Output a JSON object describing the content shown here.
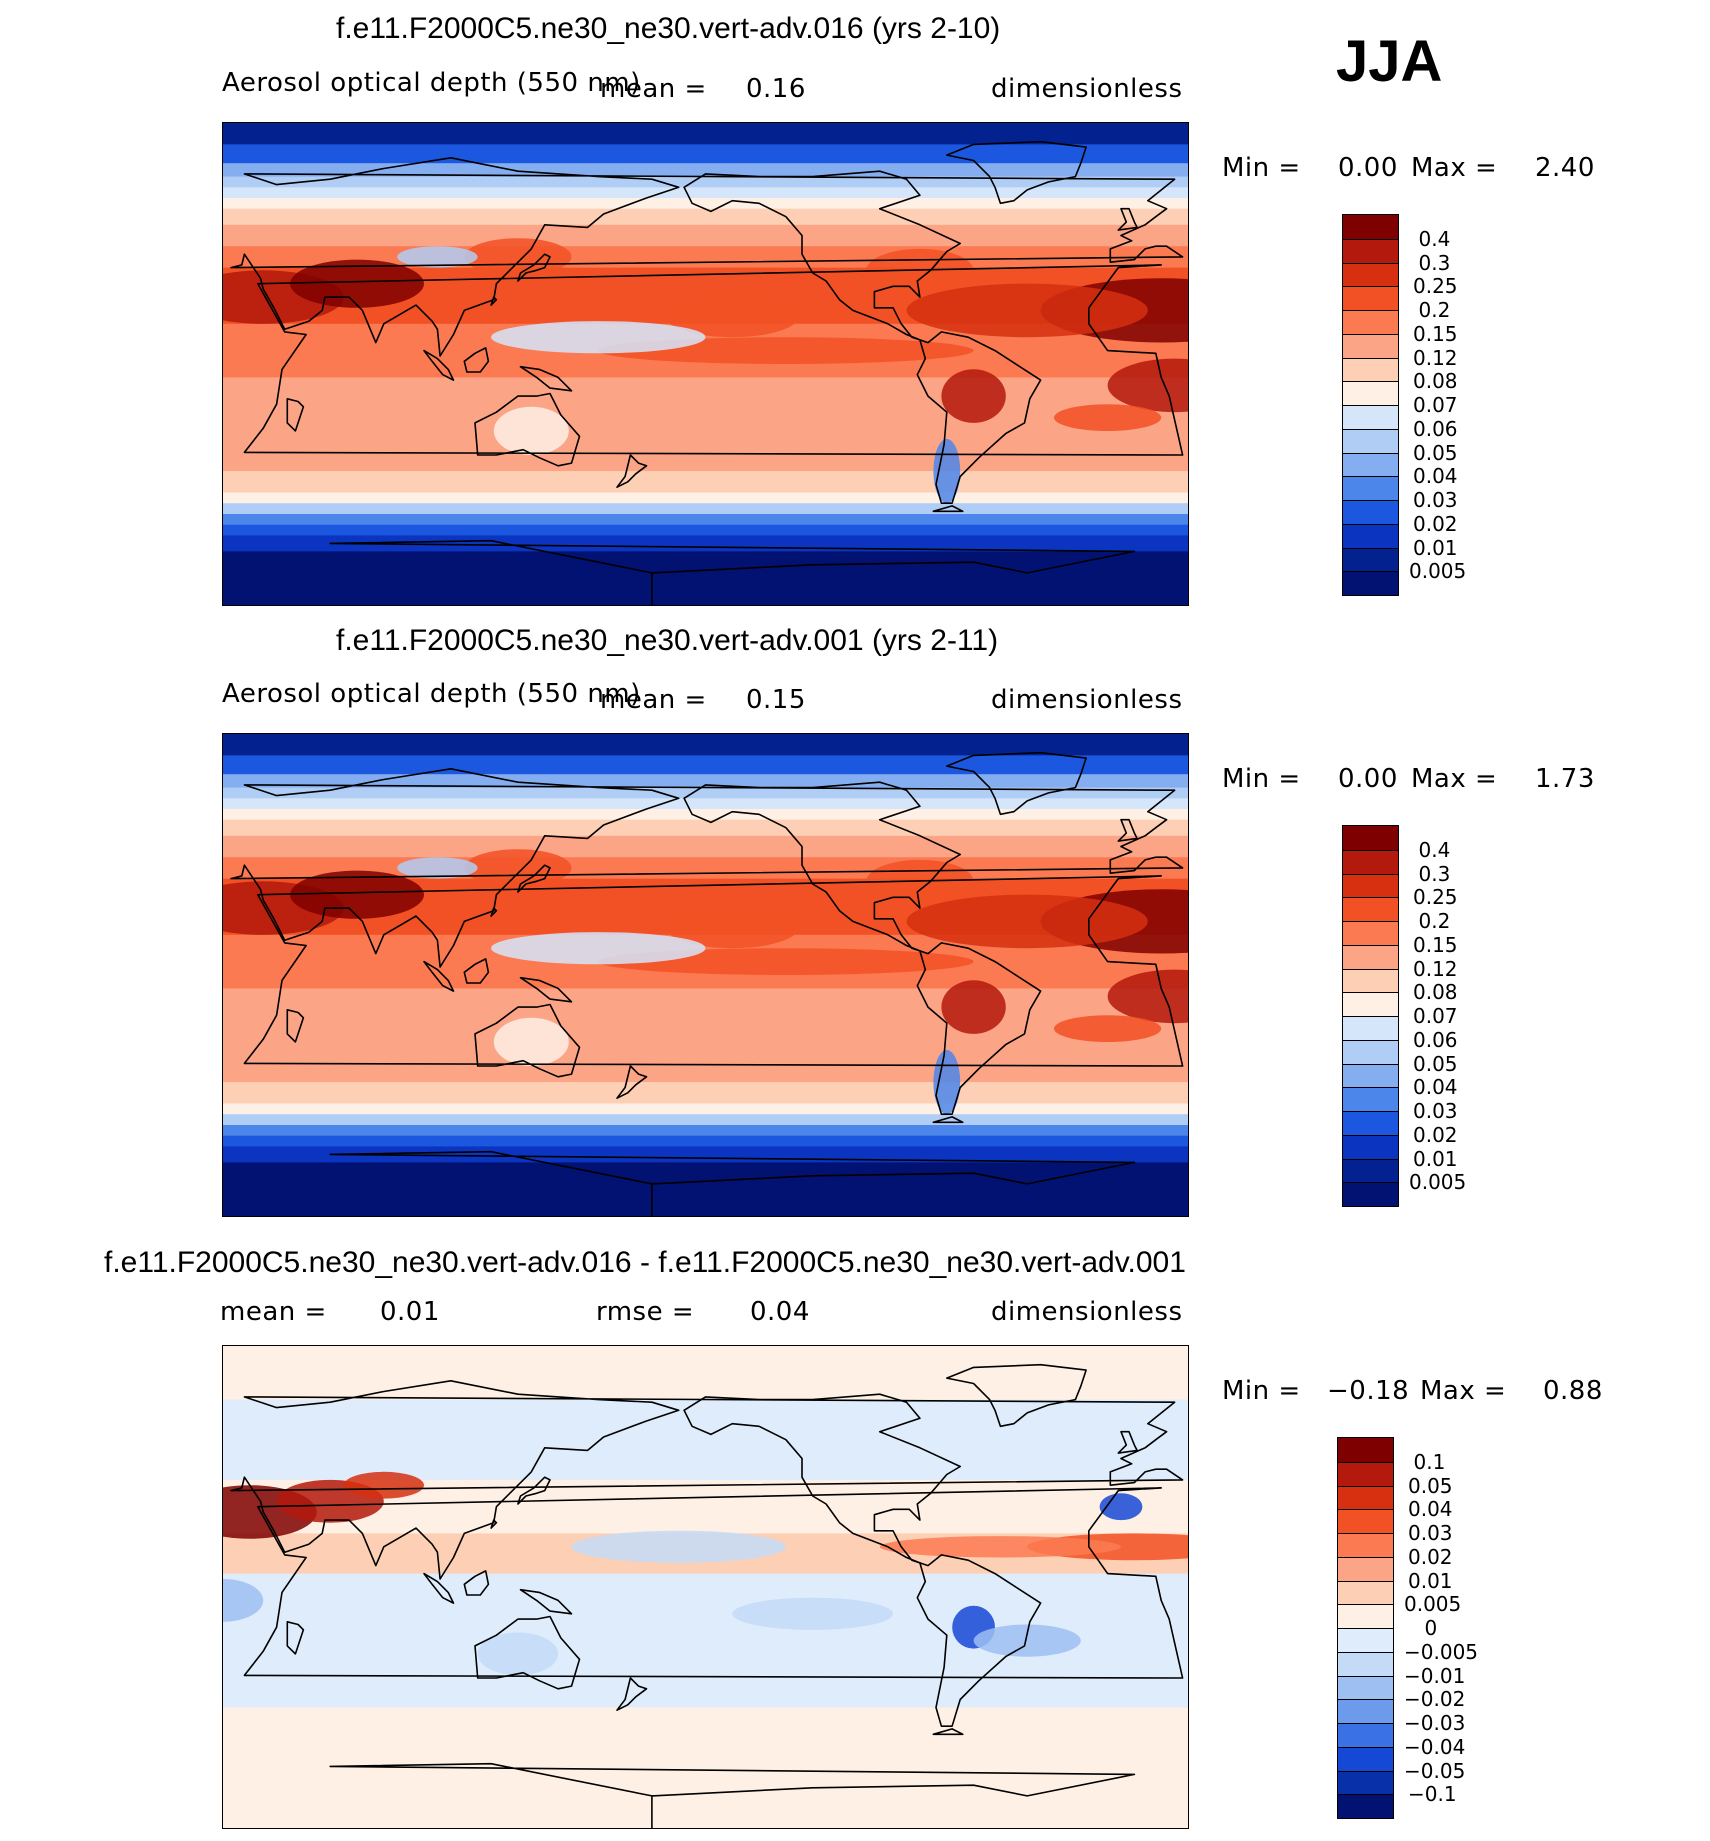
{
  "season": "JJA",
  "panels": [
    {
      "title": "f.e11.F2000C5.ne30_ne30.vert-adv.016 (yrs 2-10)",
      "variable": "Aerosol optical depth (550 nm)",
      "mean_label": "mean =",
      "mean_value": "0.16",
      "units": "dimensionless",
      "min_label": "Min =",
      "min_value": "0.00",
      "max_label": "Max =",
      "max_value": "2.40",
      "colorbar_labels": [
        "0.4",
        "0.3",
        "0.25",
        "0.2",
        "0.15",
        "0.12",
        "0.08",
        "0.07",
        "0.06",
        "0.05",
        "0.04",
        "0.03",
        "0.02",
        "0.01",
        "0.005"
      ]
    },
    {
      "title": "f.e11.F2000C5.ne30_ne30.vert-adv.001 (yrs 2-11)",
      "variable": "Aerosol optical depth (550 nm)",
      "mean_label": "mean =",
      "mean_value": "0.15",
      "units": "dimensionless",
      "min_label": "Min =",
      "min_value": "0.00",
      "max_label": "Max =",
      "max_value": "1.73",
      "colorbar_labels": [
        "0.4",
        "0.3",
        "0.25",
        "0.2",
        "0.15",
        "0.12",
        "0.08",
        "0.07",
        "0.06",
        "0.05",
        "0.04",
        "0.03",
        "0.02",
        "0.01",
        "0.005"
      ]
    },
    {
      "title": "f.e11.F2000C5.ne30_ne30.vert-adv.016 - f.e11.F2000C5.ne30_ne30.vert-adv.001",
      "mean_label": "mean =",
      "mean_value": "0.01",
      "rmse_label": "rmse =",
      "rmse_value": "0.04",
      "units": "dimensionless",
      "min_label": "Min =",
      "min_value": "−0.18",
      "max_label": "Max =",
      "max_value": "0.88",
      "colorbar_labels": [
        "0.1",
        "0.05",
        "0.04",
        "0.03",
        "0.02",
        "0.01",
        "0.005",
        "0",
        "−0.005",
        "−0.01",
        "−0.02",
        "−0.03",
        "−0.04",
        "−0.05",
        "−0.1"
      ]
    }
  ],
  "colors": {
    "abs_scale": [
      "#7f0000",
      "#b3190c",
      "#d63011",
      "#f25125",
      "#fb7a51",
      "#fca486",
      "#fdd0b6",
      "#fef0e4",
      "#d5e5fa",
      "#b0cdf5",
      "#84aef0",
      "#4c86ea",
      "#1c57e0",
      "#0b34c0",
      "#04228f",
      "#011272"
    ],
    "diff_scale": [
      "#7f0000",
      "#b3190c",
      "#d63011",
      "#f25125",
      "#fb7a51",
      "#fca486",
      "#fdd0b6",
      "#fef0e4",
      "#dfecfb",
      "#c4daf7",
      "#9dbff2",
      "#6d9bec",
      "#3a72e6",
      "#1648d6",
      "#0830a8",
      "#011272"
    ],
    "coast": "#000000"
  }
}
